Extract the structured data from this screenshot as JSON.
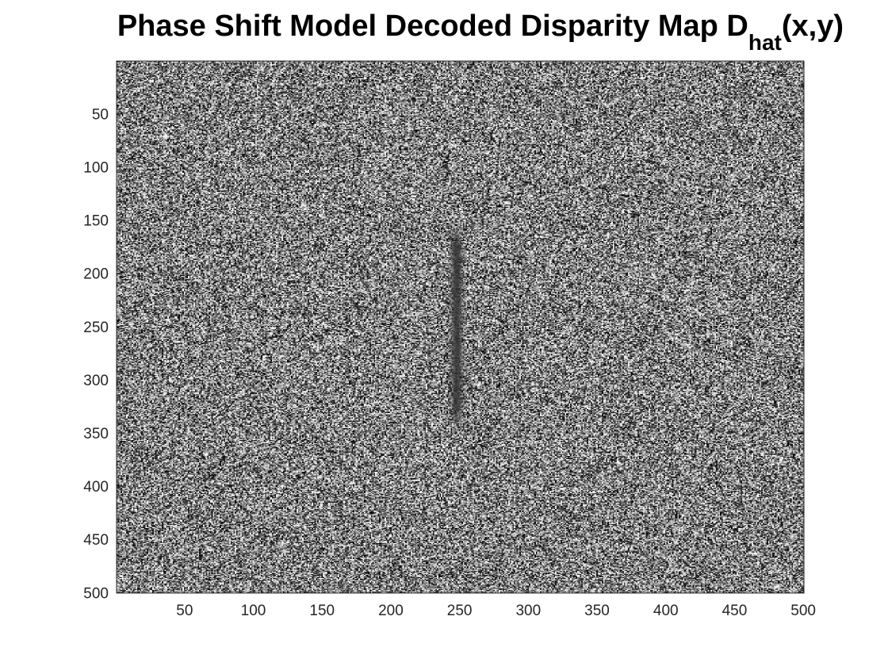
{
  "chart_data": {
    "type": "heatmap",
    "title": "Phase Shift Model Decoded Disparity Map D",
    "title_subscript": "hat",
    "title_suffix": "(x,y)",
    "xlabel": "",
    "ylabel": "",
    "colormap": "gray",
    "xlim": [
      0.5,
      500.5
    ],
    "ylim": [
      0.5,
      500.5
    ],
    "y_reversed": true,
    "grid": false,
    "x_ticks": [
      50,
      100,
      150,
      200,
      250,
      300,
      350,
      400,
      450,
      500
    ],
    "y_ticks": [
      50,
      100,
      150,
      200,
      250,
      300,
      350,
      400,
      450,
      500
    ],
    "image_size": [
      500,
      500
    ],
    "content": "uniform random gray noise with a dark vertical streak near x = 245 to 255 spanning y = 150 to 350"
  }
}
